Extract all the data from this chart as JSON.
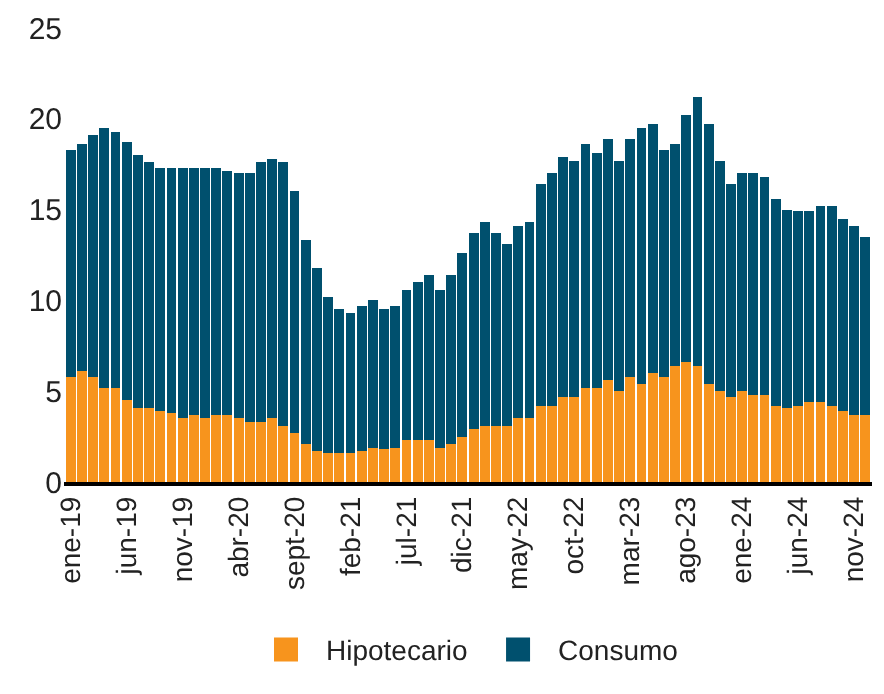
{
  "chart_data": {
    "type": "bar",
    "stacked": true,
    "categories": [
      "ene-19",
      null,
      null,
      null,
      null,
      "jun-19",
      null,
      null,
      null,
      null,
      "nov-19",
      null,
      null,
      null,
      null,
      "abr-20",
      null,
      null,
      null,
      null,
      "sept-20",
      null,
      null,
      null,
      null,
      "feb-21",
      null,
      null,
      null,
      null,
      "jul-21",
      null,
      null,
      null,
      null,
      "dic-21",
      null,
      null,
      null,
      null,
      "may-22",
      null,
      null,
      null,
      null,
      "oct-22",
      null,
      null,
      null,
      null,
      "mar-23",
      null,
      null,
      null,
      null,
      "ago-23",
      null,
      null,
      null,
      null,
      "ene-24",
      null,
      null,
      null,
      null,
      "jun-24",
      null,
      null,
      null,
      null,
      "nov-24",
      null
    ],
    "series": [
      {
        "name": "Hipotecario",
        "color": "#f7941d",
        "values": [
          5.8,
          6.1,
          5.8,
          5.2,
          5.2,
          4.5,
          4.1,
          4.1,
          3.9,
          3.8,
          3.5,
          3.7,
          3.5,
          3.7,
          3.7,
          3.5,
          3.3,
          3.3,
          3.5,
          3.1,
          2.7,
          2.1,
          1.7,
          1.6,
          1.6,
          1.6,
          1.7,
          1.9,
          1.8,
          1.9,
          2.3,
          2.3,
          2.3,
          1.9,
          2.1,
          2.5,
          2.9,
          3.1,
          3.1,
          3.1,
          3.5,
          3.5,
          4.2,
          4.2,
          4.7,
          4.7,
          5.2,
          5.2,
          5.6,
          5.0,
          5.8,
          5.4,
          6.0,
          5.8,
          6.4,
          6.6,
          6.4,
          5.4,
          5.0,
          4.7,
          5.0,
          4.8,
          4.8,
          4.2,
          4.1,
          4.2,
          4.4,
          4.4,
          4.2,
          3.9,
          3.7,
          3.7
        ]
      },
      {
        "name": "Consumo",
        "color": "#00506e",
        "values": [
          12.5,
          12.5,
          13.3,
          14.3,
          14.1,
          14.2,
          13.9,
          13.5,
          13.4,
          13.5,
          13.8,
          13.6,
          13.8,
          13.6,
          13.4,
          13.5,
          13.7,
          14.3,
          14.3,
          14.5,
          13.3,
          11.2,
          10.1,
          8.6,
          7.9,
          7.7,
          8.0,
          8.1,
          7.7,
          7.8,
          8.3,
          8.7,
          9.1,
          8.7,
          9.3,
          10.1,
          10.8,
          11.2,
          10.6,
          10.0,
          10.6,
          10.8,
          12.2,
          12.8,
          13.2,
          13.0,
          13.4,
          12.9,
          13.3,
          12.7,
          13.1,
          14.1,
          13.7,
          12.5,
          12.2,
          13.6,
          14.8,
          14.3,
          12.7,
          11.7,
          12.0,
          12.2,
          12.0,
          11.4,
          10.9,
          10.7,
          10.5,
          10.8,
          11.0,
          10.6,
          10.4,
          9.8
        ]
      }
    ],
    "ylim": [
      0,
      25
    ],
    "yticks": [
      0,
      5,
      10,
      15,
      20,
      25
    ],
    "legend": "bottom"
  }
}
